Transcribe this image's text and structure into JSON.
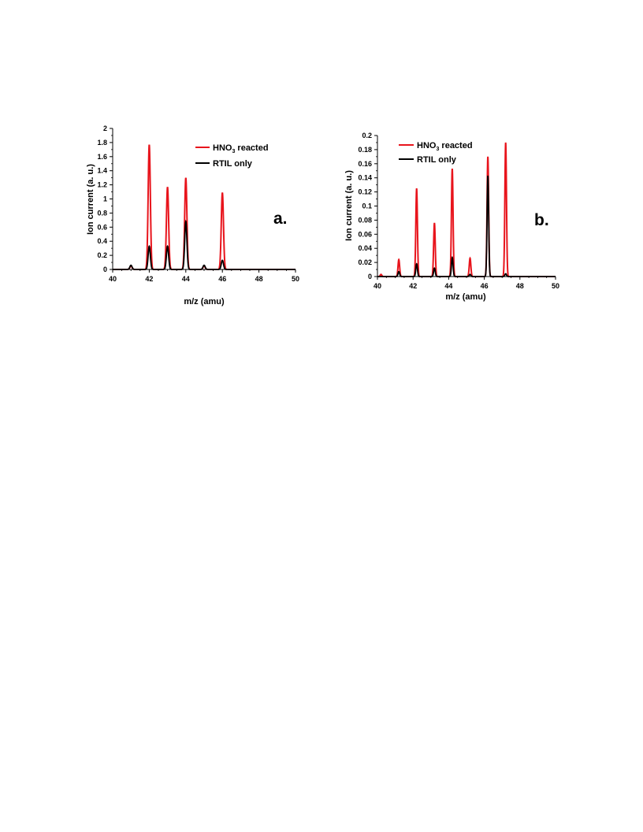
{
  "colors": {
    "reacted": "#e8141c",
    "rtil": "#000000",
    "axis": "#000000"
  },
  "chart_data": [
    {
      "type": "line",
      "panel_label": "a.",
      "xlabel": "m/z (amu)",
      "ylabel": "Ion current (a. u.)",
      "xlim": [
        40,
        50
      ],
      "ylim": [
        0,
        2
      ],
      "x_ticks": [
        "40",
        "42",
        "44",
        "46",
        "48",
        "50"
      ],
      "y_ticks": [
        "0",
        "0.2",
        "0.4",
        "0.6",
        "0.8",
        "1",
        "1.2",
        "1.4",
        "1.6",
        "1.8",
        "2"
      ],
      "legend_position": "top-right",
      "series": [
        {
          "name_main": "HNO",
          "name_sub": "3",
          "name_tail": " reacted",
          "color": "#e8141c",
          "peaks": [
            [
              41.0,
              0.05
            ],
            [
              42.0,
              1.77
            ],
            [
              43.0,
              1.17
            ],
            [
              44.0,
              1.3
            ],
            [
              45.0,
              0.05
            ],
            [
              46.0,
              1.09
            ]
          ]
        },
        {
          "name": "RTIL only",
          "color": "#000000",
          "peaks": [
            [
              41.0,
              0.06
            ],
            [
              42.0,
              0.33
            ],
            [
              43.0,
              0.33
            ],
            [
              44.0,
              0.68
            ],
            [
              45.0,
              0.06
            ],
            [
              46.0,
              0.13
            ]
          ]
        }
      ]
    },
    {
      "type": "line",
      "panel_label": "b.",
      "xlabel": "m/z (amu)",
      "ylabel": "Ion current (a. u.)",
      "xlim": [
        40,
        50
      ],
      "ylim": [
        0,
        0.2
      ],
      "x_ticks": [
        "40",
        "42",
        "44",
        "46",
        "48",
        "50"
      ],
      "y_ticks": [
        "0",
        "0.02",
        "0.04",
        "0.06",
        "0.08",
        "0.1",
        "0.12",
        "0.14",
        "0.16",
        "0.18",
        "0.2"
      ],
      "legend_position": "top-left",
      "series": [
        {
          "name_main": "HNO",
          "name_sub": "3",
          "name_tail": " reacted",
          "color": "#e8141c",
          "peaks": [
            [
              40.2,
              0.003
            ],
            [
              41.2,
              0.024
            ],
            [
              42.2,
              0.125
            ],
            [
              43.2,
              0.076
            ],
            [
              44.2,
              0.153
            ],
            [
              45.2,
              0.026
            ],
            [
              46.2,
              0.17
            ],
            [
              47.2,
              0.19
            ]
          ]
        },
        {
          "name": "RTIL only",
          "color": "#000000",
          "peaks": [
            [
              41.2,
              0.007
            ],
            [
              42.2,
              0.018
            ],
            [
              43.2,
              0.012
            ],
            [
              44.2,
              0.027
            ],
            [
              45.2,
              0.003
            ],
            [
              46.2,
              0.143
            ],
            [
              47.2,
              0.004
            ]
          ]
        }
      ]
    }
  ]
}
